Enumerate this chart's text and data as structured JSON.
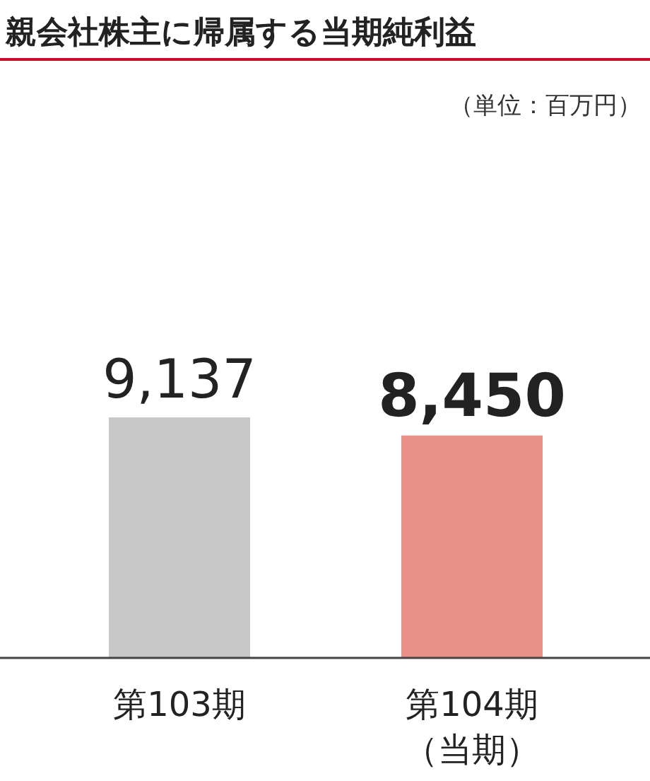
{
  "chart_data": {
    "type": "bar",
    "title": "親会社株主に帰属する当期純利益",
    "subtitle": "（単位：百万円）",
    "categories": [
      "第103期",
      "第104期（当期）"
    ],
    "values": [
      9137,
      8450
    ],
    "value_labels": [
      "9,137",
      "8,450"
    ],
    "colors": [
      "#c8c8c8",
      "#e8928a"
    ]
  }
}
